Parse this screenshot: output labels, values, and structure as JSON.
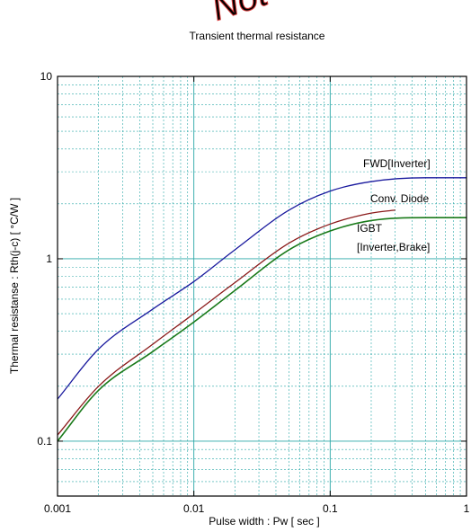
{
  "watermark": "Not",
  "chart_data": {
    "type": "line",
    "title": "Transient thermal resistance",
    "xlabel": "Pulse width  :  Pw  [ sec ]",
    "ylabel": "Thermal resistanse  :  Rth(j-c)  [ °C/W ]",
    "x_scale": "log",
    "y_scale": "log",
    "xlim": [
      0.001,
      1
    ],
    "ylim": [
      0.05,
      10
    ],
    "x_ticks": [
      {
        "value": 0.001,
        "label": "0.001"
      },
      {
        "value": 0.01,
        "label": "0.01"
      },
      {
        "value": 0.1,
        "label": "0.1"
      },
      {
        "value": 1,
        "label": "1"
      }
    ],
    "y_ticks": [
      {
        "value": 0.1,
        "label": "0.1"
      },
      {
        "value": 1,
        "label": "1"
      },
      {
        "value": 10,
        "label": "10"
      }
    ],
    "grid": true,
    "colors": {
      "grid": "#2aa7a7",
      "frame": "#000000"
    },
    "series": [
      {
        "name": "FWD[Inverter]",
        "color": "#1a1a9e",
        "x": [
          0.001,
          0.002,
          0.005,
          0.01,
          0.02,
          0.05,
          0.1,
          0.2,
          0.5,
          1
        ],
        "values": [
          0.17,
          0.32,
          0.53,
          0.75,
          1.12,
          1.85,
          2.35,
          2.65,
          2.78,
          2.78
        ]
      },
      {
        "name": "Conv. Diode",
        "color": "#8b1a1a",
        "x": [
          0.001,
          0.002,
          0.005,
          0.01,
          0.02,
          0.05,
          0.1,
          0.2,
          0.3
        ],
        "values": [
          0.108,
          0.2,
          0.34,
          0.5,
          0.74,
          1.22,
          1.55,
          1.78,
          1.85
        ]
      },
      {
        "name": "IGBT [Inverter,Brake]",
        "color": "#1a7a1a",
        "x": [
          0.001,
          0.002,
          0.005,
          0.01,
          0.02,
          0.05,
          0.1,
          0.2,
          0.5,
          1
        ],
        "values": [
          0.1,
          0.19,
          0.31,
          0.45,
          0.67,
          1.12,
          1.42,
          1.62,
          1.68,
          1.68
        ]
      }
    ],
    "labels": [
      {
        "text": "FWD[Inverter]",
        "color": "#1a1a9e"
      },
      {
        "text": "Conv. Diode",
        "color": "#8b1a1a"
      },
      {
        "text": "IGBT",
        "color": "#1a7a1a"
      },
      {
        "text": "[Inverter,Brake]",
        "color": "#1a7a1a"
      }
    ]
  }
}
